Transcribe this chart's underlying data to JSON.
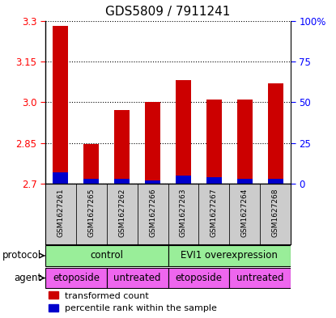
{
  "title": "GDS5809 / 7911241",
  "samples": [
    "GSM1627261",
    "GSM1627265",
    "GSM1627262",
    "GSM1627266",
    "GSM1627263",
    "GSM1627267",
    "GSM1627264",
    "GSM1627268"
  ],
  "transformed_counts": [
    3.28,
    2.845,
    2.97,
    3.0,
    3.08,
    3.01,
    3.01,
    3.07
  ],
  "percentile_ranks": [
    7,
    3,
    3,
    2,
    5,
    4,
    3,
    3
  ],
  "ylim": [
    2.7,
    3.3
  ],
  "yticks": [
    2.7,
    2.85,
    3.0,
    3.15,
    3.3
  ],
  "right_yticks": [
    0,
    25,
    50,
    75,
    100
  ],
  "bar_color_red": "#cc0000",
  "bar_color_blue": "#0000cc",
  "bar_width": 0.5,
  "protocol_labels": [
    "control",
    "EVI1 overexpression"
  ],
  "protocol_ranges": [
    [
      0,
      4
    ],
    [
      4,
      8
    ]
  ],
  "protocol_color": "#99ee99",
  "agent_labels": [
    "etoposide",
    "untreated",
    "etoposide",
    "untreated"
  ],
  "agent_ranges": [
    [
      0,
      2
    ],
    [
      2,
      4
    ],
    [
      4,
      6
    ],
    [
      6,
      8
    ]
  ],
  "agent_color": "#ee66ee",
  "sample_bg_color": "#cccccc",
  "legend_red": "transformed count",
  "legend_blue": "percentile rank within the sample",
  "title_fontsize": 11,
  "tick_fontsize": 8.5,
  "row_label_fontsize": 8.5,
  "sample_fontsize": 6.5,
  "legend_fontsize": 8
}
